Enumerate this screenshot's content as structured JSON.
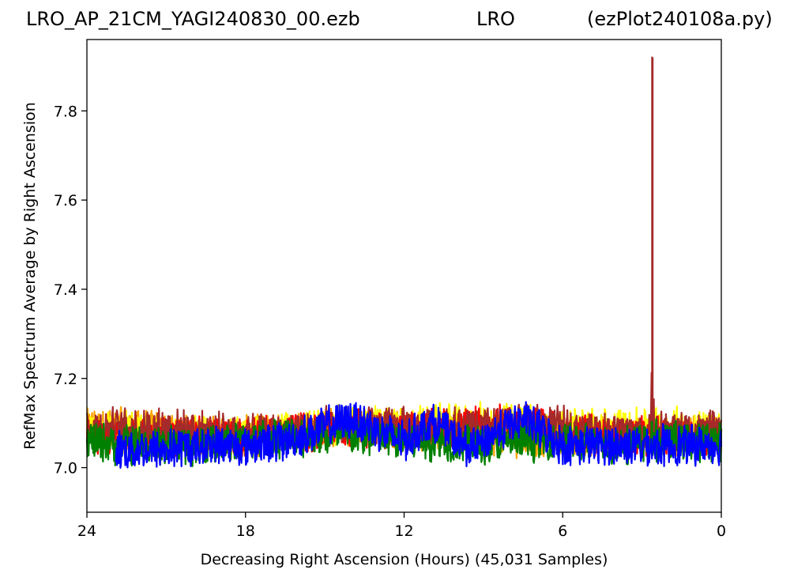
{
  "header": {
    "file_title": "LRO_AP_21CM_YAGI240830_00.ezb",
    "site_title": "LRO",
    "script_title": "(ezPlot240108a.py)"
  },
  "chart_data": {
    "type": "line",
    "title": "",
    "xlabel": "Decreasing Right Ascension (Hours) (45,031 Samples)",
    "ylabel": "RefMax Spectrum Average by Right Ascension",
    "xlim": [
      24,
      0
    ],
    "ylim": [
      6.9,
      7.96
    ],
    "x_ticks": [
      24,
      18,
      12,
      6,
      0
    ],
    "x_tick_labels": [
      "24",
      "18",
      "12",
      "6",
      "0"
    ],
    "y_ticks": [
      7.0,
      7.2,
      7.4,
      7.6,
      7.8
    ],
    "y_tick_labels": [
      "7.0",
      "7.2",
      "7.4",
      "7.6",
      "7.8"
    ],
    "x_axis_inverted": true,
    "grid": false,
    "legend": "none",
    "sample_count": 45031,
    "series": [
      {
        "color": "#ffa500",
        "x": [
          24,
          22.5,
          21,
          19.5,
          18,
          16.5,
          15,
          13.5,
          12,
          10.5,
          9,
          7.5,
          6,
          4.5,
          3,
          1.5,
          0
        ],
        "y": [
          7.09,
          7.09,
          7.08,
          7.07,
          7.07,
          7.08,
          7.09,
          7.09,
          7.08,
          7.08,
          7.07,
          7.07,
          7.07,
          7.07,
          7.07,
          7.07,
          7.07
        ]
      },
      {
        "color": "#ffff00",
        "x": [
          24,
          22.5,
          21,
          19.5,
          18,
          16.5,
          15,
          13.5,
          12,
          10.5,
          9,
          7.5,
          6,
          4.5,
          3,
          1.5,
          0
        ],
        "y": [
          7.08,
          7.08,
          7.07,
          7.07,
          7.07,
          7.08,
          7.09,
          7.1,
          7.09,
          7.1,
          7.1,
          7.1,
          7.09,
          7.09,
          7.09,
          7.09,
          7.09
        ]
      },
      {
        "color": "#ff0000",
        "x": [
          24,
          22.5,
          21,
          19.5,
          18,
          16.5,
          15,
          13.5,
          12,
          10.5,
          9,
          7.5,
          6,
          4.5,
          3,
          1.5,
          0
        ],
        "y": [
          7.07,
          7.07,
          7.07,
          7.07,
          7.07,
          7.08,
          7.08,
          7.09,
          7.08,
          7.09,
          7.09,
          7.1,
          7.08,
          7.07,
          7.07,
          7.07,
          7.07
        ]
      },
      {
        "color": "#a52a2a",
        "x": [
          24,
          22.5,
          21,
          19.5,
          18,
          16.5,
          15,
          13.5,
          12,
          10.5,
          9,
          7.5,
          6,
          4.5,
          3,
          2.65,
          2.6,
          2.55,
          1.5,
          0
        ],
        "y": [
          7.09,
          7.09,
          7.09,
          7.08,
          7.08,
          7.08,
          7.09,
          7.09,
          7.09,
          7.09,
          7.09,
          7.1,
          7.09,
          7.08,
          7.08,
          7.08,
          7.92,
          7.08,
          7.08,
          7.08
        ]
      },
      {
        "color": "#008000",
        "x": [
          24,
          22.5,
          21,
          19.5,
          18,
          16.5,
          15,
          13.5,
          12,
          10.5,
          9,
          7.5,
          6,
          4.5,
          3,
          1.5,
          0
        ],
        "y": [
          7.06,
          7.05,
          7.05,
          7.05,
          7.06,
          7.07,
          7.07,
          7.07,
          7.06,
          7.06,
          7.05,
          7.06,
          7.06,
          7.05,
          7.06,
          7.06,
          7.06
        ]
      },
      {
        "color": "#0000ff",
        "x": [
          22.9,
          21,
          19.5,
          18,
          16.5,
          15,
          14,
          13.5,
          12.5,
          12,
          11,
          10.5,
          10,
          9.5,
          8.5,
          7.5,
          6.5,
          6,
          4.5,
          3,
          1.5,
          0
        ],
        "y": [
          7.04,
          7.04,
          7.05,
          7.05,
          7.06,
          7.09,
          7.11,
          7.1,
          7.07,
          7.06,
          7.1,
          7.09,
          7.06,
          7.04,
          7.08,
          7.11,
          7.07,
          7.05,
          7.05,
          7.05,
          7.05,
          7.05
        ]
      }
    ]
  }
}
